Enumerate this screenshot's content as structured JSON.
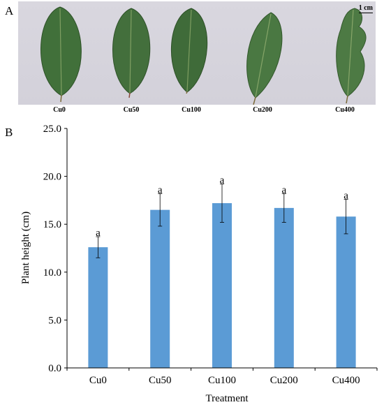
{
  "panel_a": {
    "letter": "A",
    "scale_label": "1 cm",
    "leaf_labels": [
      "Cu0",
      "Cu50",
      "Cu100",
      "Cu200",
      "Cu400"
    ],
    "leaf_color": "#3f6a38"
  },
  "panel_b": {
    "letter": "B"
  },
  "chart_data": {
    "type": "bar",
    "categories": [
      "Cu0",
      "Cu50",
      "Cu100",
      "Cu200",
      "Cu400"
    ],
    "series": [
      {
        "values": [
          12.6,
          16.5,
          17.2,
          16.7,
          15.8
        ],
        "errors": [
          1.1,
          1.7,
          2.0,
          1.5,
          1.8
        ],
        "significance": [
          "a",
          "a",
          "a",
          "a",
          "a"
        ]
      }
    ],
    "xlabel": "Treatment",
    "ylabel": "Plant height (cm)",
    "ylim": [
      0,
      25
    ],
    "yticks": [
      "0.0",
      "5.0",
      "10.0",
      "15.0",
      "20.0",
      "25.0"
    ],
    "bar_color": "#5b9bd5",
    "grid": false,
    "legend": false
  }
}
